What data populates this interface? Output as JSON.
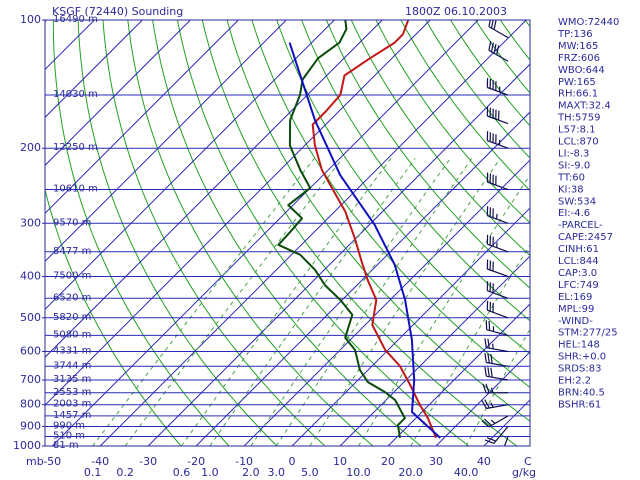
{
  "chart_data": {
    "type": "skewt",
    "title": "KSGF (72440) Sounding",
    "time": "1800Z 06.10.2003",
    "ylabel": "mb",
    "xlabel": "C",
    "mixing_label": "g/kg",
    "log_y": true,
    "ylim": [
      1000,
      100
    ],
    "yticks": [
      100,
      200,
      300,
      400,
      500,
      600,
      700,
      800,
      900,
      1000
    ],
    "xlim": [
      -51.5,
      49.6
    ],
    "xticks": [
      -50,
      -40,
      -30,
      -20,
      -10,
      0,
      10,
      20,
      30,
      40
    ],
    "isotherm_color": "#2a2ab8",
    "isobar_color": "#2a2ab8",
    "adiabat_color": "#22a022",
    "mixing_color": "#4aa04a",
    "mixing_ratios": [
      0.1,
      0.2,
      0.6,
      {
        "value": 1,
        "label": "1.0"
      },
      {
        "value": 2,
        "label": "2.0"
      },
      {
        "value": 3,
        "label": "3.0"
      },
      {
        "value": 5,
        "label": "5.0"
      },
      {
        "value": 10,
        "label": "10.0"
      },
      {
        "value": 20,
        "label": "20.0"
      },
      {
        "value": 40,
        "label": "40.0"
      }
    ],
    "levels": [
      {
        "pressure": 100,
        "label": "16490 m"
      },
      {
        "pressure": 150,
        "label": "14030 m"
      },
      {
        "pressure": 200,
        "label": "12250 m"
      },
      {
        "pressure": 250,
        "label": "10610 m"
      },
      {
        "pressure": 300,
        "label": "9570 m"
      },
      {
        "pressure": 350,
        "label": "8477 m"
      },
      {
        "pressure": 400,
        "label": "7500 m"
      },
      {
        "pressure": 450,
        "label": "6520 m"
      },
      {
        "pressure": 500,
        "label": "5820 m"
      },
      {
        "pressure": 550,
        "label": "5080 m"
      },
      {
        "pressure": 600,
        "label": "4331 m"
      },
      {
        "pressure": 650,
        "label": "3744 m"
      },
      {
        "pressure": 700,
        "label": "3135 m"
      },
      {
        "pressure": 750,
        "label": "2553 m"
      },
      {
        "pressure": 800,
        "label": "2003 m"
      },
      {
        "pressure": 850,
        "label": "1457 m"
      },
      {
        "pressure": 900,
        "label": "990 m"
      },
      {
        "pressure": 950,
        "label": "510 m"
      },
      {
        "pressure": 1000,
        "label": "81 m"
      }
    ],
    "series": [
      {
        "color": "#c01818",
        "pressure": [
          957,
          860,
          801,
          719,
          649,
          595,
          520,
          454,
          408,
          370,
          328,
          282,
          257,
          225,
          197,
          176,
          164,
          150,
          135,
          123,
          113,
          108,
          100
        ],
        "temperature": [
          28.3,
          22.5,
          18.1,
          11.9,
          5.8,
          -0.6,
          -8.5,
          -12.9,
          -18.8,
          -23.8,
          -29.8,
          -37.7,
          -43.3,
          -51.3,
          -57.9,
          -62.7,
          -62.7,
          -63.1,
          -66.3,
          -64.6,
          -62.7,
          -62.7,
          -64.6
        ]
      },
      {
        "color": "#0a4a0a",
        "pressure": [
          957,
          893,
          860,
          780,
          747,
          708,
          663,
          595,
          557,
          492,
          454,
          419,
          386,
          356,
          337,
          315,
          292,
          272,
          248,
          225,
          197,
          172,
          150,
          138,
          123,
          113,
          105,
          100
        ],
        "temperature": [
          20.8,
          17.7,
          17.7,
          11.9,
          8.1,
          2.5,
          -1.7,
          -6.9,
          -11.5,
          -14.8,
          -20.4,
          -26.7,
          -31.9,
          -38.1,
          -44.8,
          -45,
          -45.4,
          -51,
          -50,
          -55.8,
          -63.1,
          -68.3,
          -71.5,
          -74.2,
          -75.4,
          -74.2,
          -75.6,
          -77.7
        ]
      },
      {
        "color": "#1010c0",
        "pressure": [
          957,
          832,
          700,
          564,
          454,
          376,
          303,
          231,
          172,
          113
        ],
        "temperature": [
          29.2,
          17.9,
          11.7,
          2.9,
          -6.9,
          -16.3,
          -28.8,
          -46.5,
          -63.1,
          -84.6
        ]
      }
    ],
    "winds": [
      {
        "pressure": 950,
        "direction": 200,
        "speed": 15
      },
      {
        "pressure": 900,
        "direction": 220,
        "speed": 20
      },
      {
        "pressure": 850,
        "direction": 240,
        "speed": 25
      },
      {
        "pressure": 800,
        "direction": 260,
        "speed": 25
      },
      {
        "pressure": 750,
        "direction": 270,
        "speed": 25
      },
      {
        "pressure": 700,
        "direction": 280,
        "speed": 30
      },
      {
        "pressure": 650,
        "direction": 280,
        "speed": 30
      },
      {
        "pressure": 600,
        "direction": 280,
        "speed": 25
      },
      {
        "pressure": 550,
        "direction": 285,
        "speed": 25
      },
      {
        "pressure": 500,
        "direction": 290,
        "speed": 30
      },
      {
        "pressure": 450,
        "direction": 290,
        "speed": 30
      },
      {
        "pressure": 400,
        "direction": 290,
        "speed": 30
      },
      {
        "pressure": 350,
        "direction": 290,
        "speed": 35
      },
      {
        "pressure": 300,
        "direction": 290,
        "speed": 35
      },
      {
        "pressure": 250,
        "direction": 290,
        "speed": 40
      },
      {
        "pressure": 200,
        "direction": 290,
        "speed": 45
      },
      {
        "pressure": 175,
        "direction": 290,
        "speed": 50
      },
      {
        "pressure": 150,
        "direction": 290,
        "speed": 45
      },
      {
        "pressure": 125,
        "direction": 300,
        "speed": 40
      },
      {
        "pressure": 110,
        "direction": 300,
        "speed": 30
      }
    ],
    "indices": [
      "WMO:72440",
      "TP:136",
      "MW:165",
      "FRZ:606",
      "WBO:644",
      "PW:165",
      "RH:66.1",
      "MAXT:32.4",
      "TH:5759",
      "L57:8.1",
      "LCL:870",
      "LI:-8.3",
      "SI:-9.0",
      "TT:60",
      "KI:38",
      "SW:534",
      "EI:-4.6",
      "-PARCEL-",
      "CAPE:2457",
      "CINH:61",
      "LCL:844",
      "CAP:3.0",
      "LFC:749",
      "EL:169",
      "MPL:99",
      "-WIND-",
      "STM:277/25",
      "HEL:148",
      "SHR:+0.0",
      "SRDS:83",
      "EH:2.2",
      "BRN:40.5",
      "BSHR:61"
    ]
  }
}
